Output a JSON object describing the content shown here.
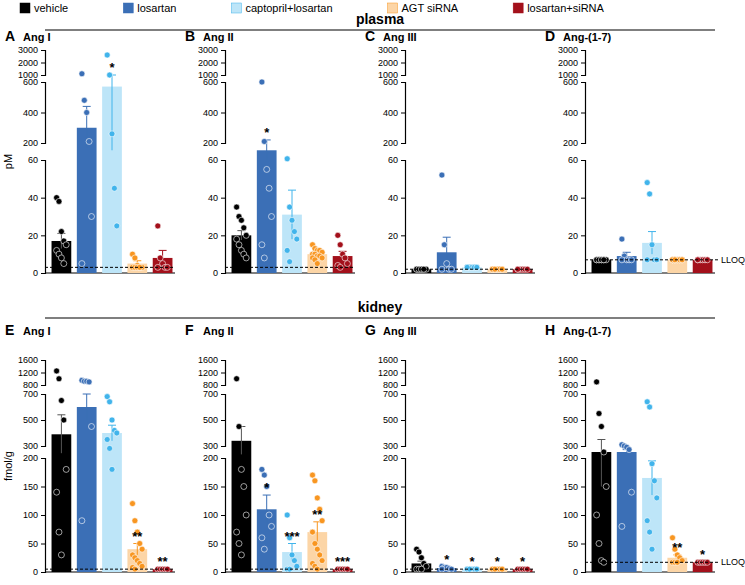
{
  "chart_data": [
    {
      "type": "bar",
      "panel_label": "A",
      "title": "Ang I",
      "section": "plasma",
      "y_label": "pM",
      "legend": "top",
      "y_segments": [
        {
          "ylim": [
            0,
            60
          ],
          "yticks": [
            0,
            20,
            40,
            60
          ]
        },
        {
          "ylim": [
            200,
            600
          ],
          "yticks": [
            200,
            400,
            600
          ]
        },
        {
          "ylim": [
            1000,
            3000
          ],
          "yticks": [
            1000,
            2000,
            3000
          ]
        }
      ],
      "lloq": 3,
      "series": [
        {
          "name": "vehicle",
          "color": "#000000",
          "values": [
            17
          ],
          "errors": [
            4
          ],
          "points": [
            40,
            38,
            22,
            17,
            15,
            12,
            10,
            8,
            5
          ]
        },
        {
          "name": "losartan",
          "color": "#3b6fb6",
          "values": [
            300
          ],
          "errors": [
            140
          ],
          "points": [
            1100,
            480,
            400,
            210,
            30,
            5
          ]
        },
        {
          "name": "captopril+losartan",
          "color": "#bde5f8",
          "values": [
            570
          ],
          "errors": [
            430
          ],
          "points": [
            2600,
            1000,
            260,
            45,
            25
          ],
          "annotation": "*"
        },
        {
          "name": "AGT siRNA",
          "color": "#fcd5a6",
          "values": [
            5
          ],
          "errors": [
            1.5
          ],
          "points": [
            10,
            8,
            4,
            3,
            3,
            3,
            3,
            3,
            3
          ]
        },
        {
          "name": "losartan+siRNA",
          "color": "#a3101b",
          "values": [
            8
          ],
          "errors": [
            4
          ],
          "points": [
            25,
            8,
            5,
            3,
            3,
            3
          ]
        }
      ]
    },
    {
      "type": "bar",
      "panel_label": "B",
      "title": "Ang II",
      "y_segments": [
        {
          "ylim": [
            0,
            60
          ],
          "yticks": [
            0,
            20,
            40,
            60
          ]
        },
        {
          "ylim": [
            200,
            600
          ],
          "yticks": [
            200,
            400,
            600
          ]
        },
        {
          "ylim": [
            1000,
            3000
          ],
          "yticks": [
            1000,
            2000,
            3000
          ]
        }
      ],
      "lloq": 3,
      "series": [
        {
          "color": "#000000",
          "values": [
            20
          ],
          "errors": [
            2.5
          ],
          "points": [
            35,
            30,
            28,
            24,
            20,
            18,
            15,
            12,
            10,
            8
          ]
        },
        {
          "color": "#3b6fb6",
          "values": [
            140
          ],
          "errors": [
            80
          ],
          "points": [
            600,
            210,
            55,
            45,
            30,
            15,
            8
          ],
          "annotation": "*"
        },
        {
          "color": "#bde5f8",
          "values": [
            31
          ],
          "errors": [
            13
          ],
          "points": [
            70,
            35,
            28,
            22,
            18,
            12,
            6
          ]
        },
        {
          "color": "#fcd5a6",
          "values": [
            10
          ],
          "errors": [
            1
          ],
          "points": [
            15,
            13,
            12,
            12,
            11,
            10,
            10,
            9,
            9,
            8,
            8,
            7,
            5
          ]
        },
        {
          "color": "#a3101b",
          "values": [
            9
          ],
          "errors": [
            2.5
          ],
          "points": [
            20,
            15,
            10,
            8,
            5,
            4,
            3
          ]
        }
      ]
    },
    {
      "type": "bar",
      "panel_label": "C",
      "title": "Ang III",
      "y_segments": [
        {
          "ylim": [
            0,
            60
          ],
          "yticks": [
            0,
            20,
            40,
            60
          ]
        },
        {
          "ylim": [
            200,
            600
          ],
          "yticks": [
            200,
            400,
            600
          ]
        },
        {
          "ylim": [
            1000,
            3000
          ],
          "yticks": [
            1000,
            2000,
            3000
          ]
        }
      ],
      "lloq": 2,
      "series": [
        {
          "color": "#000000",
          "values": [
            2
          ],
          "errors": [
            0
          ],
          "points": [
            2,
            2,
            2,
            2,
            2,
            2,
            2,
            2,
            2
          ]
        },
        {
          "color": "#3b6fb6",
          "values": [
            11
          ],
          "errors": [
            8
          ],
          "points": [
            52,
            15,
            5,
            2,
            2,
            2
          ]
        },
        {
          "color": "#bde5f8",
          "values": [
            3
          ],
          "errors": [
            0
          ],
          "points": [
            3,
            3,
            3,
            3,
            3,
            3
          ]
        },
        {
          "color": "#fcd5a6",
          "values": [
            2
          ],
          "errors": [
            0
          ],
          "points": [
            2,
            2,
            2,
            2,
            2,
            2,
            2,
            2,
            2,
            2,
            2,
            2
          ]
        },
        {
          "color": "#a3101b",
          "values": [
            2
          ],
          "errors": [
            0
          ],
          "points": [
            2,
            2,
            2,
            2,
            2,
            2
          ]
        }
      ]
    },
    {
      "type": "bar",
      "panel_label": "D",
      "title": "Ang-(1-7)",
      "y_segments": [
        {
          "ylim": [
            0,
            60
          ],
          "yticks": [
            0,
            20,
            40,
            60
          ]
        },
        {
          "ylim": [
            200,
            600
          ],
          "yticks": [
            200,
            400,
            600
          ]
        },
        {
          "ylim": [
            1000,
            3000
          ],
          "yticks": [
            1000,
            2000,
            3000
          ]
        }
      ],
      "lloq": 7,
      "lloq_label": "LLOQ",
      "series": [
        {
          "color": "#000000",
          "values": [
            7
          ],
          "errors": [
            0
          ],
          "points": [
            7,
            7,
            7,
            7,
            7,
            7,
            7,
            7,
            7
          ]
        },
        {
          "color": "#3b6fb6",
          "values": [
            9
          ],
          "errors": [
            2
          ],
          "points": [
            18,
            9,
            7,
            7,
            7,
            7
          ]
        },
        {
          "color": "#bde5f8",
          "values": [
            16
          ],
          "errors": [
            6
          ],
          "points": [
            48,
            42,
            15,
            7,
            7,
            7
          ]
        },
        {
          "color": "#fcd5a6",
          "values": [
            7
          ],
          "errors": [
            0
          ],
          "points": [
            7,
            7,
            7,
            7,
            7,
            7,
            7,
            7,
            7,
            7,
            7,
            7
          ]
        },
        {
          "color": "#a3101b",
          "values": [
            7
          ],
          "errors": [
            0
          ],
          "points": [
            7,
            7,
            7,
            7,
            7,
            7
          ]
        }
      ]
    },
    {
      "type": "bar",
      "panel_label": "E",
      "title": "Ang I",
      "section": "kidney",
      "y_label": "fmol/g",
      "y_segments": [
        {
          "ylim": [
            0,
            200
          ],
          "yticks": [
            0,
            50,
            100,
            150,
            200
          ]
        },
        {
          "ylim": [
            300,
            700
          ],
          "yticks": [
            300,
            500,
            700
          ]
        },
        {
          "ylim": [
            800,
            1600
          ],
          "yticks": [
            800,
            1200,
            1600
          ]
        }
      ],
      "lloq": 5,
      "series": [
        {
          "color": "#000000",
          "values": [
            390
          ],
          "errors": [
            150
          ],
          "points": [
            1250,
            1000,
            650,
            500,
            180,
            140,
            70,
            30
          ]
        },
        {
          "color": "#3b6fb6",
          "values": [
            600
          ],
          "errors": [
            100
          ],
          "points": [
            950,
            920,
            920,
            900,
            450,
            90
          ]
        },
        {
          "color": "#bde5f8",
          "values": [
            400
          ],
          "errors": [
            60
          ],
          "points": [
            680,
            640,
            500,
            420,
            400,
            350,
            280,
            180
          ]
        },
        {
          "color": "#fcd5a6",
          "values": [
            40
          ],
          "errors": [
            10
          ],
          "points": [
            120,
            90,
            70,
            50,
            40,
            30,
            25,
            20,
            15,
            10,
            8,
            5
          ],
          "annotation": "**"
        },
        {
          "color": "#a3101b",
          "values": [
            5
          ],
          "errors": [
            0
          ],
          "points": [
            5,
            5,
            5,
            5,
            5
          ],
          "annotation": "**"
        }
      ]
    },
    {
      "type": "bar",
      "panel_label": "F",
      "title": "Ang II",
      "y_segments": [
        {
          "ylim": [
            0,
            200
          ],
          "yticks": [
            0,
            50,
            100,
            150,
            200
          ]
        },
        {
          "ylim": [
            300,
            700
          ],
          "yticks": [
            300,
            500,
            700
          ]
        },
        {
          "ylim": [
            800,
            1600
          ],
          "yticks": [
            800,
            1200,
            1600
          ]
        }
      ],
      "lloq": 5,
      "series": [
        {
          "color": "#000000",
          "values": [
            340
          ],
          "errors": [
            110
          ],
          "points": [
            1000,
            450,
            180,
            150,
            100,
            70,
            50,
            30
          ]
        },
        {
          "color": "#3b6fb6",
          "values": [
            110
          ],
          "errors": [
            25
          ],
          "points": [
            180,
            170,
            150,
            100,
            80,
            60,
            40
          ],
          "annotation": "*"
        },
        {
          "color": "#bde5f8",
          "values": [
            35
          ],
          "errors": [
            15
          ],
          "points": [
            100,
            60,
            30,
            20,
            10,
            5,
            5
          ],
          "annotation": "***"
        },
        {
          "color": "#fcd5a6",
          "values": [
            70
          ],
          "errors": [
            18
          ],
          "points": [
            170,
            160,
            130,
            110,
            90,
            70,
            50,
            40,
            30,
            20,
            15,
            10,
            5
          ],
          "annotation": "**"
        },
        {
          "color": "#a3101b",
          "values": [
            5
          ],
          "errors": [
            0
          ],
          "points": [
            5,
            5,
            5,
            5,
            5
          ],
          "annotation": "***"
        }
      ]
    },
    {
      "type": "bar",
      "panel_label": "G",
      "title": "Ang III",
      "y_segments": [
        {
          "ylim": [
            0,
            200
          ],
          "yticks": [
            0,
            50,
            100,
            150,
            200
          ]
        },
        {
          "ylim": [
            300,
            700
          ],
          "yticks": [
            300,
            500,
            700
          ]
        },
        {
          "ylim": [
            800,
            1600
          ],
          "yticks": [
            800,
            1200,
            1600
          ]
        }
      ],
      "lloq": 5,
      "series": [
        {
          "color": "#000000",
          "values": [
            15
          ],
          "errors": [
            4
          ],
          "points": [
            40,
            35,
            25,
            15,
            10,
            5,
            5,
            5
          ]
        },
        {
          "color": "#3b6fb6",
          "values": [
            7
          ],
          "errors": [
            1
          ],
          "points": [
            10,
            8,
            8,
            6,
            5,
            5
          ],
          "annotation": "*"
        },
        {
          "color": "#bde5f8",
          "values": [
            5
          ],
          "errors": [
            0
          ],
          "points": [
            5,
            5,
            5,
            5,
            5,
            5,
            5
          ],
          "annotation": "*"
        },
        {
          "color": "#fcd5a6",
          "values": [
            5
          ],
          "errors": [
            0
          ],
          "points": [
            5,
            5,
            5,
            5,
            5,
            5,
            5,
            5,
            5,
            5,
            5,
            5
          ],
          "annotation": "*"
        },
        {
          "color": "#a3101b",
          "values": [
            5
          ],
          "errors": [
            0
          ],
          "points": [
            5,
            5,
            5,
            5,
            5
          ],
          "annotation": "*"
        }
      ]
    },
    {
      "type": "bar",
      "panel_label": "H",
      "title": "Ang-(1-7)",
      "y_segments": [
        {
          "ylim": [
            0,
            200
          ],
          "yticks": [
            0,
            50,
            100,
            150,
            200
          ]
        },
        {
          "ylim": [
            300,
            700
          ],
          "yticks": [
            300,
            500,
            700
          ]
        },
        {
          "ylim": [
            800,
            1600
          ],
          "yticks": [
            800,
            1200,
            1600
          ]
        }
      ],
      "lloq": 17,
      "lloq_label": "LLOQ",
      "series": [
        {
          "color": "#000000",
          "values": [
            250
          ],
          "errors": [
            100
          ],
          "points": [
            900,
            550,
            450,
            250,
            150,
            100,
            50,
            20,
            17
          ]
        },
        {
          "color": "#3b6fb6",
          "values": [
            250
          ],
          "errors": [
            20
          ],
          "points": [
            310,
            300,
            290,
            270,
            140,
            80
          ]
        },
        {
          "color": "#bde5f8",
          "values": [
            165
          ],
          "errors": [
            30
          ],
          "points": [
            640,
            600,
            190,
            160,
            130,
            90,
            70,
            40
          ]
        },
        {
          "color": "#fcd5a6",
          "values": [
            25
          ],
          "errors": [
            5
          ],
          "points": [
            60,
            40,
            30,
            25,
            20,
            17,
            17,
            17
          ],
          "annotation": "**"
        },
        {
          "color": "#a3101b",
          "values": [
            17
          ],
          "errors": [
            0
          ],
          "points": [
            17,
            17,
            17,
            17,
            17
          ],
          "annotation": "*"
        }
      ]
    }
  ]
}
